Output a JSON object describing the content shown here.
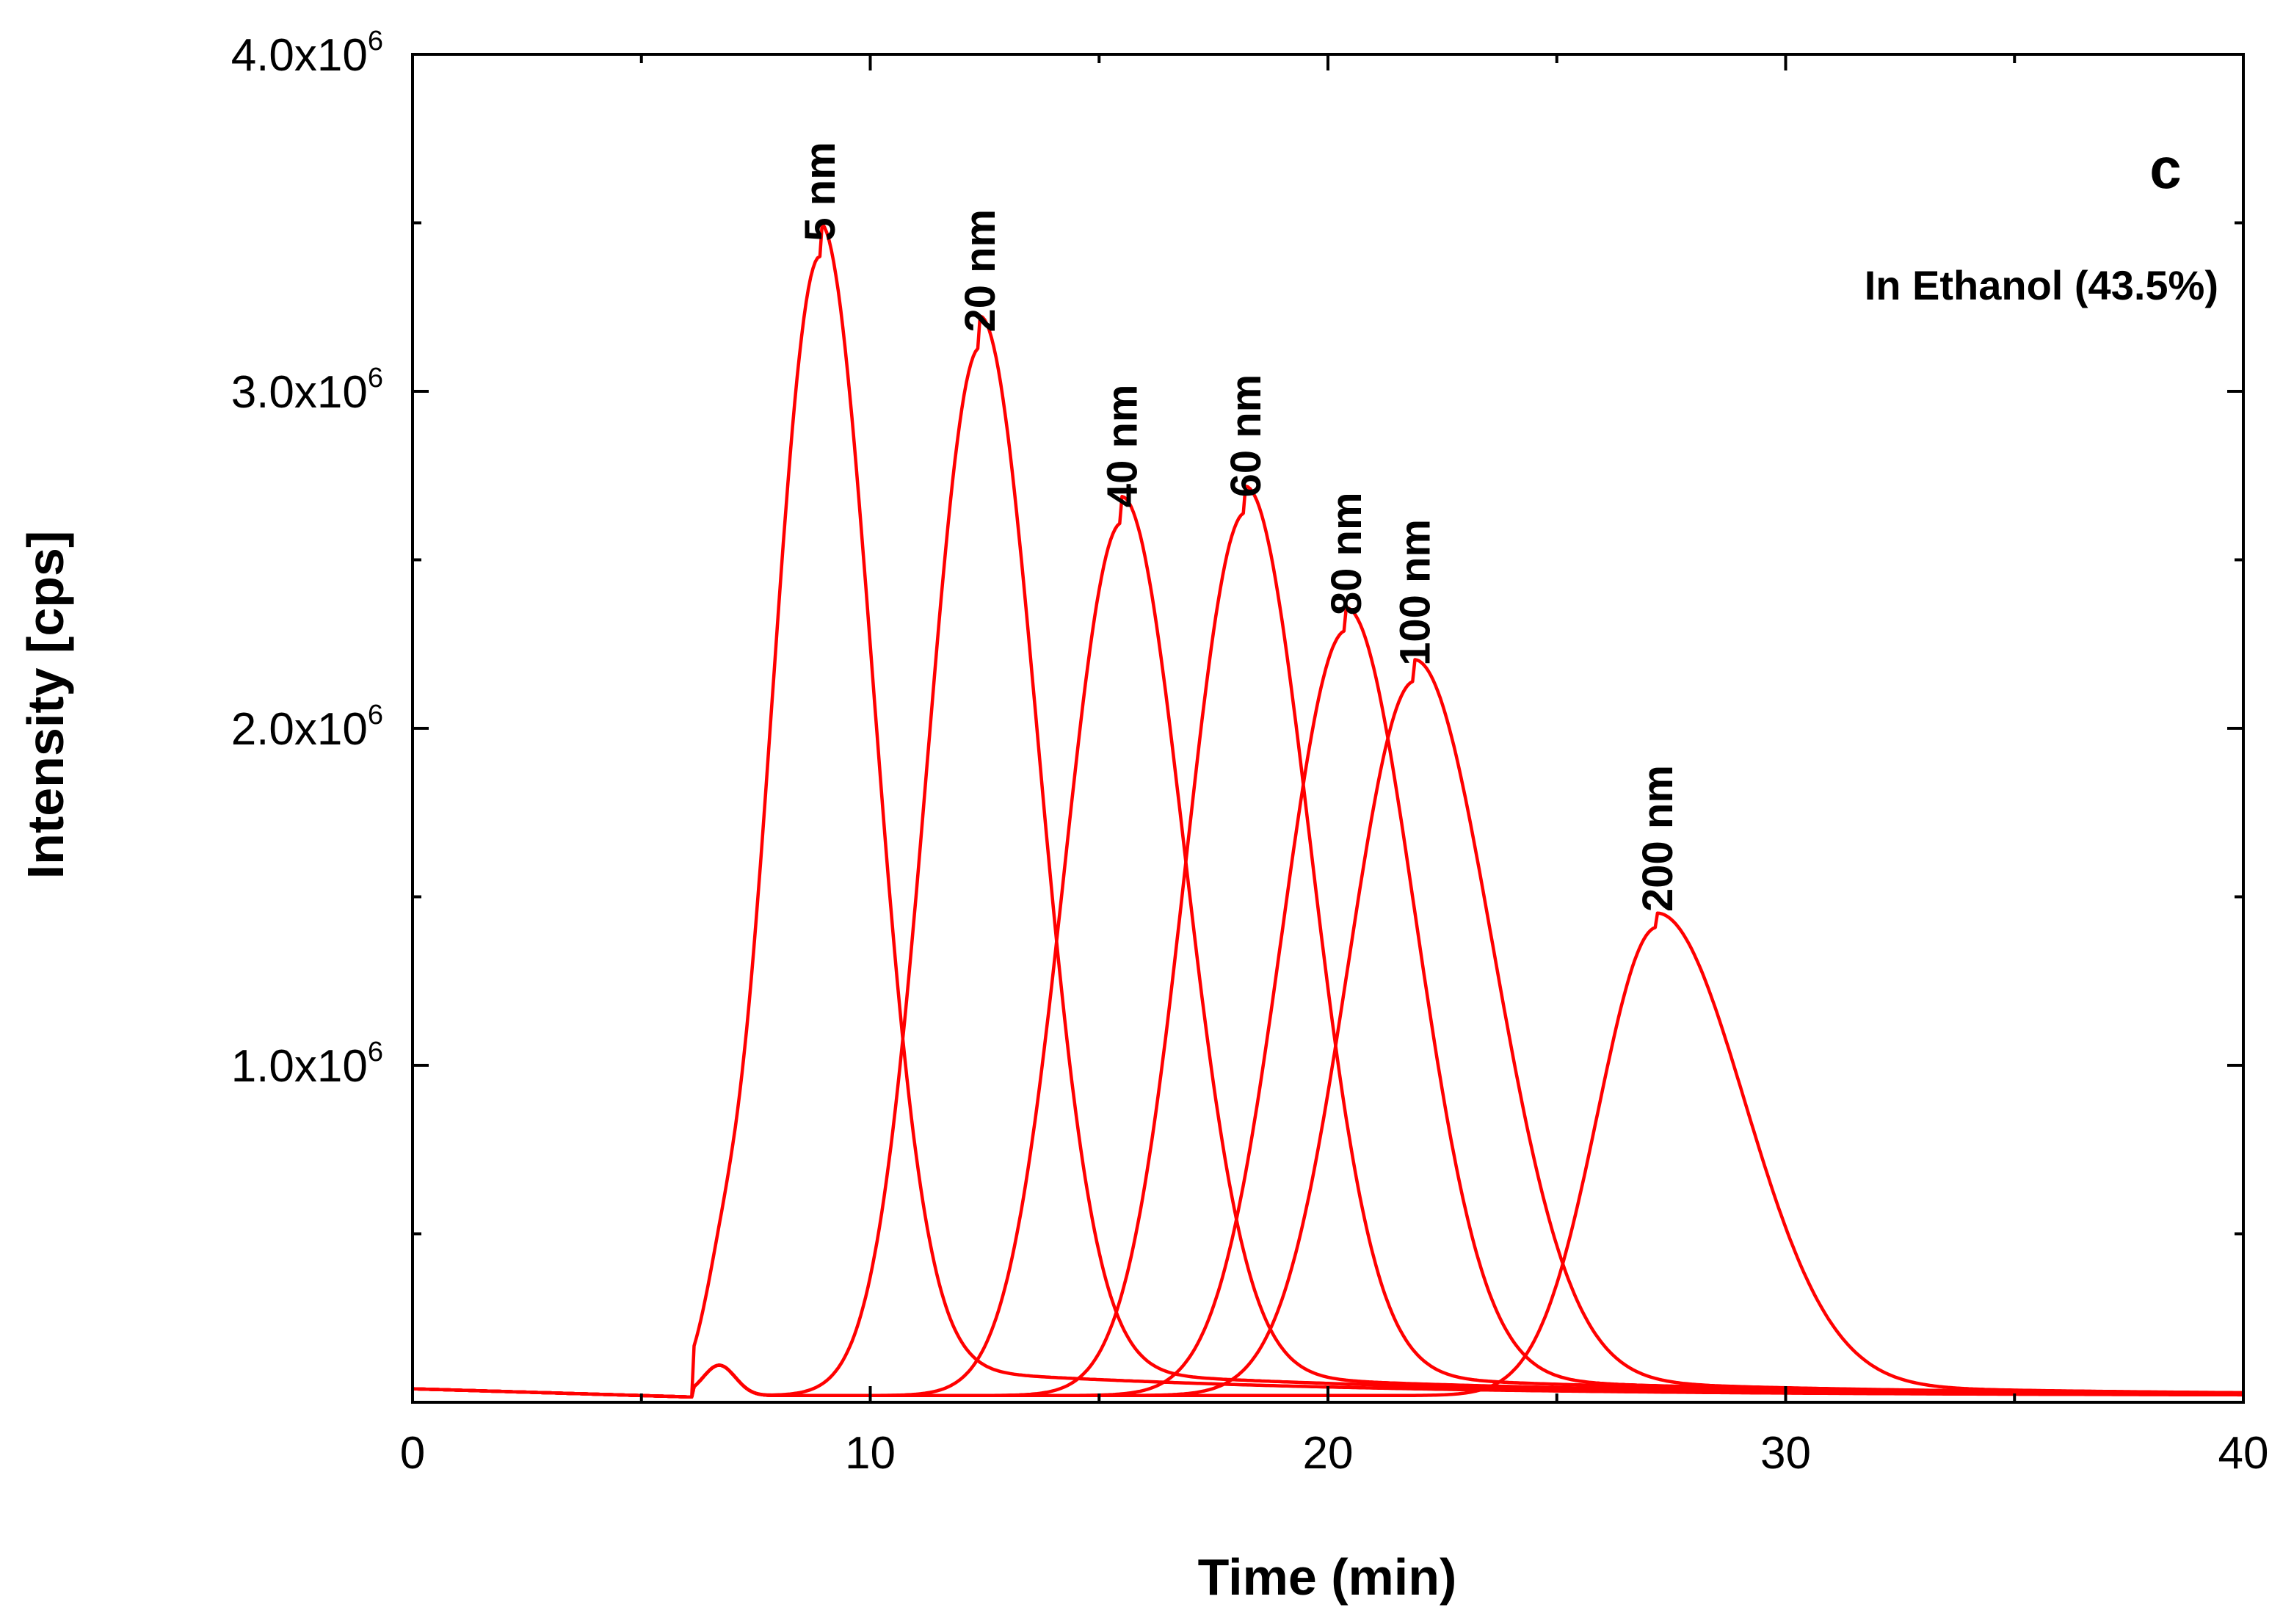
{
  "chart_data": {
    "type": "line",
    "panel_label": "c",
    "annotation": "In Ethanol (43.5%)",
    "xlabel": "Time (min)",
    "ylabel": "Intensity [cps]",
    "xlim": [
      0,
      40
    ],
    "ylim": [
      0,
      4000000
    ],
    "x_ticks": [
      0,
      10,
      20,
      30,
      40
    ],
    "x_tick_labels": [
      "0",
      "10",
      "20",
      "30",
      "40"
    ],
    "y_ticks": [
      1000000,
      2000000,
      3000000,
      4000000
    ],
    "y_tick_labels": [
      {
        "mantissa": "1.0x10",
        "exponent": "6"
      },
      {
        "mantissa": "2.0x10",
        "exponent": "6"
      },
      {
        "mantissa": "3.0x10",
        "exponent": "6"
      },
      {
        "mantissa": "4.0x10",
        "exponent": "6"
      }
    ],
    "line_color": "#ff0000",
    "series": [
      {
        "name": "5 nm",
        "peak_x": 8.9,
        "peak_y": 3380000,
        "width_left": 1.05,
        "width_right": 1.15,
        "baseline": 20000
      },
      {
        "name": "20 nm",
        "peak_x": 12.4,
        "peak_y": 3110000,
        "width_left": 1.15,
        "width_right": 1.25,
        "baseline": 20000
      },
      {
        "name": "40 nm",
        "peak_x": 15.5,
        "peak_y": 2590000,
        "width_left": 1.25,
        "width_right": 1.35,
        "baseline": 20000
      },
      {
        "name": "60 nm",
        "peak_x": 18.2,
        "peak_y": 2620000,
        "width_left": 1.3,
        "width_right": 1.4,
        "baseline": 20000
      },
      {
        "name": "80 nm",
        "peak_x": 20.4,
        "peak_y": 2270000,
        "width_left": 1.4,
        "width_right": 1.5,
        "baseline": 20000
      },
      {
        "name": "100 nm",
        "peak_x": 21.9,
        "peak_y": 2120000,
        "width_left": 1.45,
        "width_right": 1.7,
        "baseline": 20000
      },
      {
        "name": "200 nm",
        "peak_x": 27.2,
        "peak_y": 1390000,
        "width_left": 1.3,
        "width_right": 1.9,
        "baseline": 20000
      }
    ]
  }
}
